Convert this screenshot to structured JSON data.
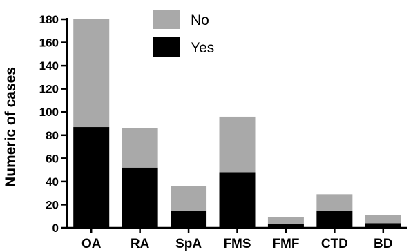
{
  "chart_data": {
    "type": "bar",
    "stacked": true,
    "categories": [
      "OA",
      "RA",
      "SpA",
      "FMS",
      "FMF",
      "CTD",
      "BD"
    ],
    "series": [
      {
        "name": "Yes",
        "values": [
          87,
          52,
          15,
          48,
          3,
          15,
          4
        ],
        "color": "#000000"
      },
      {
        "name": "No",
        "values": [
          93,
          34,
          21,
          48,
          6,
          14,
          7
        ],
        "color": "#a9a9a9"
      }
    ],
    "title": "",
    "xlabel": "",
    "ylabel": "Numeric of cases",
    "ylim": [
      0,
      180
    ],
    "yticks": [
      "0",
      "20",
      "40",
      "60",
      "80",
      "100",
      "120",
      "140",
      "160",
      "180"
    ],
    "grid": false,
    "legend": {
      "placement": "top-center",
      "order": [
        "No",
        "Yes"
      ]
    }
  }
}
